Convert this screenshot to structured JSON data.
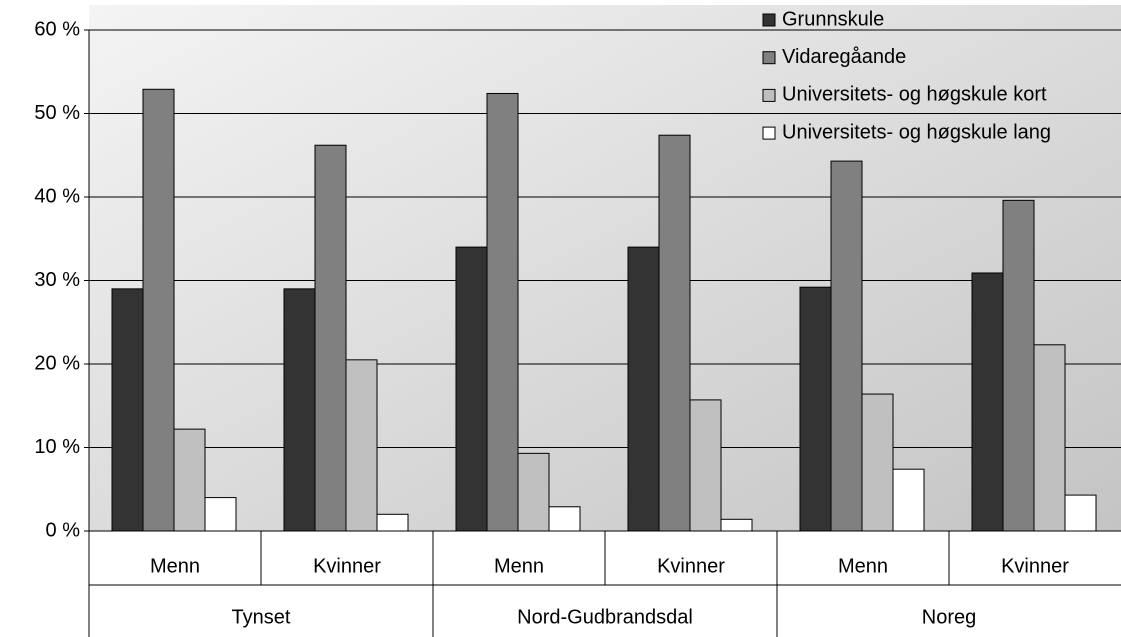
{
  "chart_data": {
    "type": "bar",
    "categories": [
      "Menn",
      "Kvinner",
      "Menn",
      "Kvinner",
      "Menn",
      "Kvinner"
    ],
    "groups": [
      "Tynset",
      "Nord-Gudbrandsdal",
      "Noreg"
    ],
    "series": [
      {
        "name": "Grunnskule",
        "color": "#333333",
        "values": [
          29,
          29,
          34,
          34,
          29.2,
          30.9
        ]
      },
      {
        "name": "Vidaregåande",
        "color": "#808080",
        "values": [
          52.9,
          46.2,
          52.4,
          47.4,
          44.3,
          39.6
        ]
      },
      {
        "name": "Universitets- og høgskule kort",
        "color": "#c0c0c0",
        "values": [
          12.2,
          20.5,
          9.3,
          15.7,
          16.4,
          22.3
        ]
      },
      {
        "name": "Universitets- og høgskule lang",
        "color": "#ffffff",
        "values": [
          4.0,
          2.0,
          2.9,
          1.4,
          7.4,
          4.3
        ]
      }
    ],
    "ylim": [
      0,
      60
    ],
    "yticks": [
      {
        "value": 0,
        "label": "0 %"
      },
      {
        "value": 10,
        "label": "10 %"
      },
      {
        "value": 20,
        "label": "20 %"
      },
      {
        "value": 30,
        "label": "30 %"
      },
      {
        "value": 40,
        "label": "40 %"
      },
      {
        "value": 50,
        "label": "50 %"
      },
      {
        "value": 60,
        "label": "60 %"
      }
    ],
    "grid": true,
    "legend": "top-right"
  }
}
